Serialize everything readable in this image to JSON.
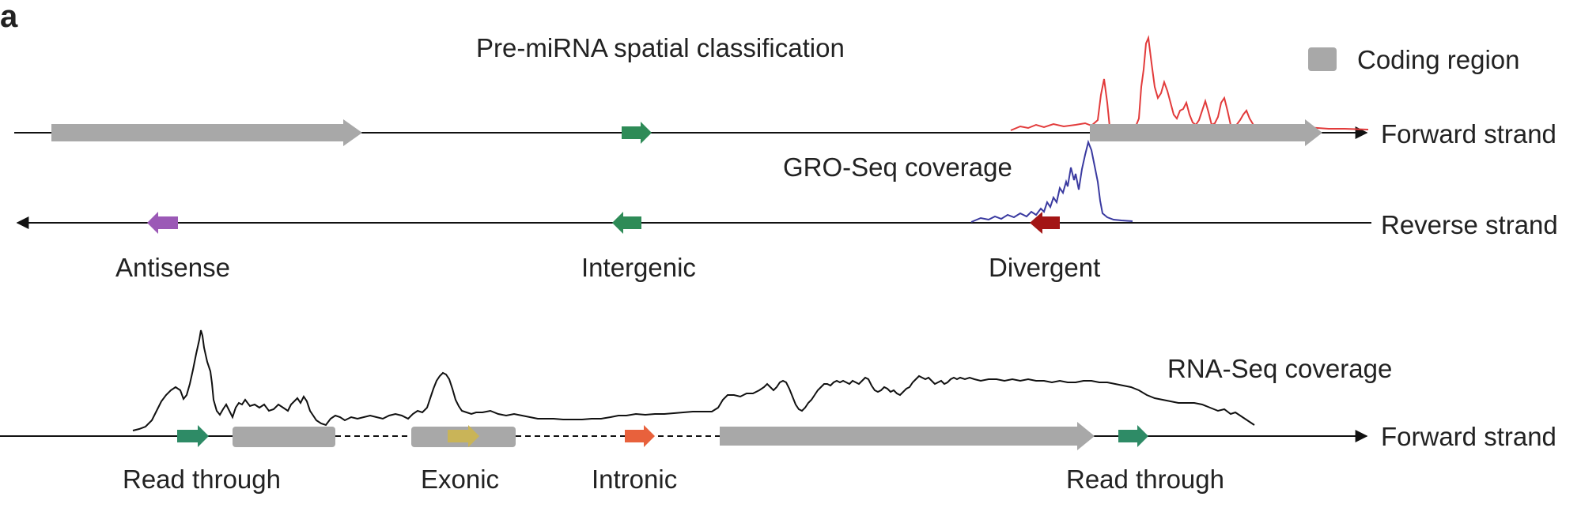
{
  "figure": {
    "panel_letter": "a",
    "title": "Pre-miRNA spatial classification",
    "legend": {
      "label": "Coding region",
      "color": "#a8a8a8"
    },
    "tracks": {
      "forward_top": "Forward strand",
      "reverse": "Reverse strand",
      "forward_bottom": "Forward strand"
    },
    "coverage_labels": {
      "gro_seq": "GRO-Seq coverage",
      "rna_seq": "RNA-Seq coverage"
    },
    "categories": {
      "antisense": "Antisense",
      "intergenic": "Intergenic",
      "divergent": "Divergent",
      "read_through_left": "Read through",
      "exonic": "Exonic",
      "intronic": "Intronic",
      "read_through_right": "Read through"
    },
    "colors": {
      "coding_region": "#a8a8a8",
      "intergenic_mirna": "#2e8b57",
      "antisense_mirna": "#9b59b6",
      "divergent_mirna": "#a31515",
      "read_through_mirna": "#2e8b66",
      "exonic_mirna": "#c9b458",
      "intronic_mirna": "#e8613c",
      "gro_seq_forward": "#e23b3b",
      "gro_seq_reverse": "#3a3aa0",
      "rna_seq": "#111111"
    }
  }
}
